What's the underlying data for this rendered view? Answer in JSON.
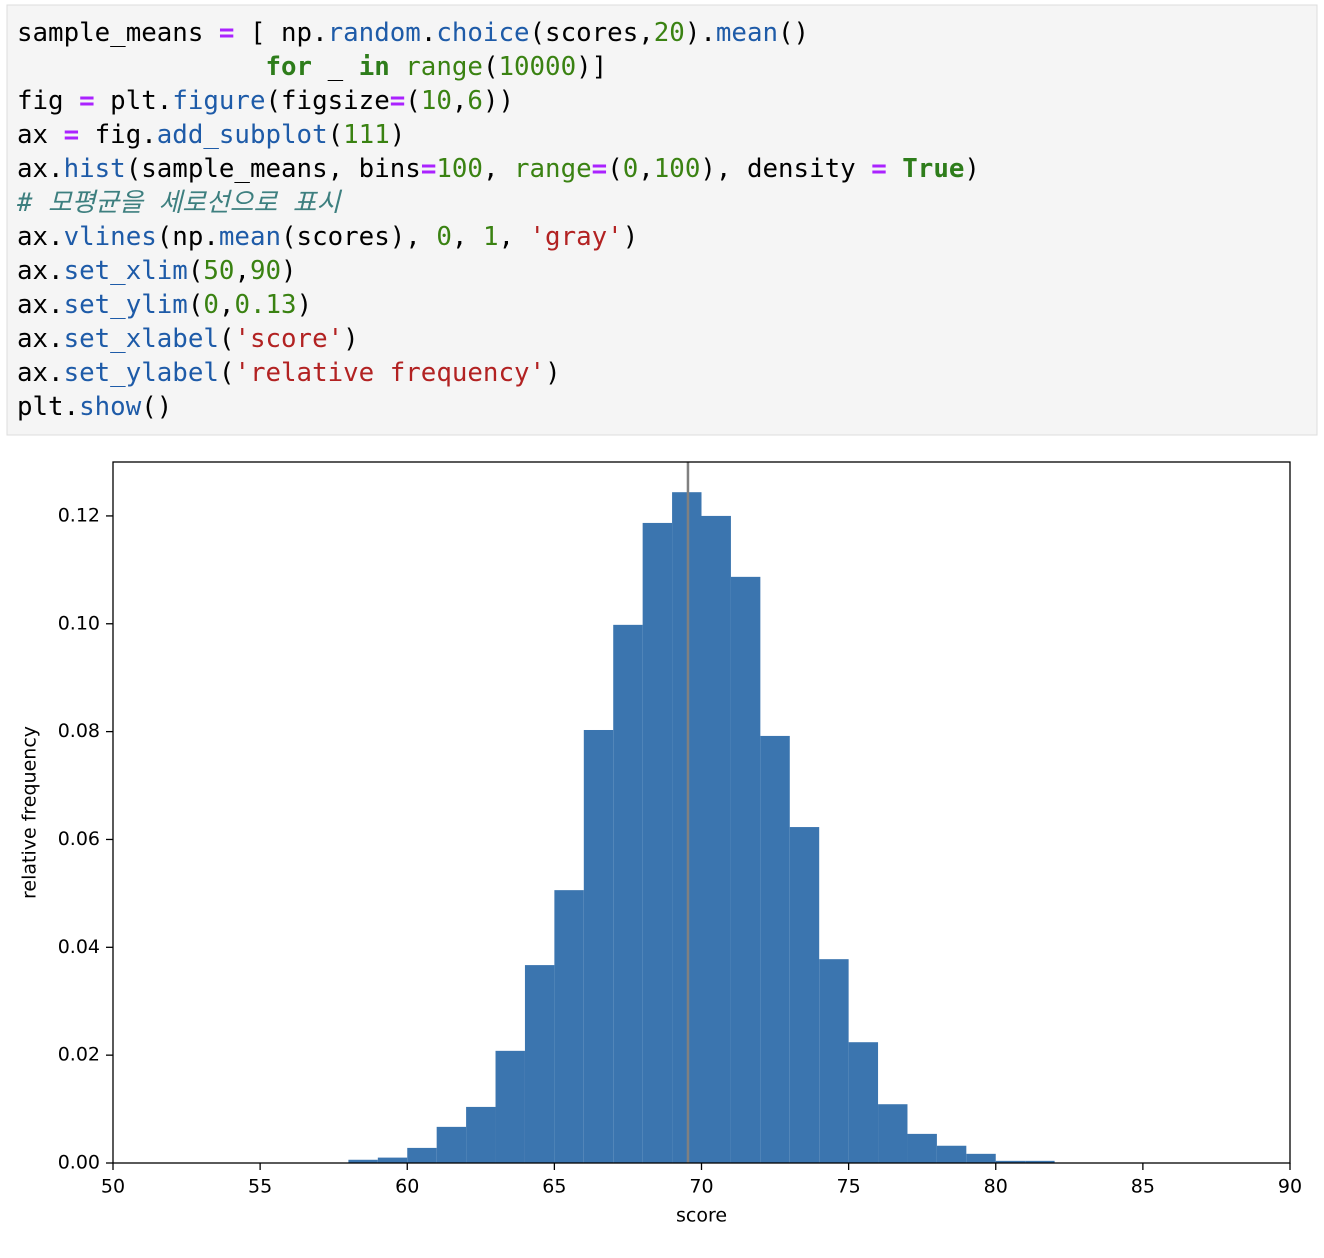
{
  "code": {
    "lines": [
      [
        {
          "t": "sample_means ",
          "c": "#000000"
        },
        {
          "t": "=",
          "c": "#aa22ff",
          "b": true
        },
        {
          "t": " [ np.",
          "c": "#000000"
        },
        {
          "t": "random",
          "c": "#1e5ba8"
        },
        {
          "t": ".",
          "c": "#000000"
        },
        {
          "t": "choice",
          "c": "#1e5ba8"
        },
        {
          "t": "(scores,",
          "c": "#000000"
        },
        {
          "t": "20",
          "c": "#3a8212"
        },
        {
          "t": ").",
          "c": "#000000"
        },
        {
          "t": "mean",
          "c": "#1e5ba8"
        },
        {
          "t": "()",
          "c": "#000000"
        }
      ],
      [
        {
          "t": "                for",
          "c": "#2e7d1b",
          "b": true
        },
        {
          "t": " _ ",
          "c": "#000000"
        },
        {
          "t": "in",
          "c": "#2e7d1b",
          "b": true
        },
        {
          "t": " ",
          "c": "#000000"
        },
        {
          "t": "range",
          "c": "#3a8212"
        },
        {
          "t": "(",
          "c": "#000000"
        },
        {
          "t": "10000",
          "c": "#3a8212"
        },
        {
          "t": ")]",
          "c": "#000000"
        }
      ],
      [
        {
          "t": "fig ",
          "c": "#000000"
        },
        {
          "t": "=",
          "c": "#aa22ff",
          "b": true
        },
        {
          "t": " plt.",
          "c": "#000000"
        },
        {
          "t": "figure",
          "c": "#1e5ba8"
        },
        {
          "t": "(figsize",
          "c": "#000000"
        },
        {
          "t": "=",
          "c": "#aa22ff",
          "b": true
        },
        {
          "t": "(",
          "c": "#000000"
        },
        {
          "t": "10",
          "c": "#3a8212"
        },
        {
          "t": ",",
          "c": "#000000"
        },
        {
          "t": "6",
          "c": "#3a8212"
        },
        {
          "t": "))",
          "c": "#000000"
        }
      ],
      [
        {
          "t": "ax ",
          "c": "#000000"
        },
        {
          "t": "=",
          "c": "#aa22ff",
          "b": true
        },
        {
          "t": " fig.",
          "c": "#000000"
        },
        {
          "t": "add_subplot",
          "c": "#1e5ba8"
        },
        {
          "t": "(",
          "c": "#000000"
        },
        {
          "t": "111",
          "c": "#3a8212"
        },
        {
          "t": ")",
          "c": "#000000"
        }
      ],
      [
        {
          "t": "ax.",
          "c": "#000000"
        },
        {
          "t": "hist",
          "c": "#1e5ba8"
        },
        {
          "t": "(sample_means, bins",
          "c": "#000000"
        },
        {
          "t": "=",
          "c": "#aa22ff",
          "b": true
        },
        {
          "t": "100",
          "c": "#3a8212"
        },
        {
          "t": ", ",
          "c": "#000000"
        },
        {
          "t": "range",
          "c": "#3a8212"
        },
        {
          "t": "=",
          "c": "#aa22ff",
          "b": true
        },
        {
          "t": "(",
          "c": "#000000"
        },
        {
          "t": "0",
          "c": "#3a8212"
        },
        {
          "t": ",",
          "c": "#000000"
        },
        {
          "t": "100",
          "c": "#3a8212"
        },
        {
          "t": "), density ",
          "c": "#000000"
        },
        {
          "t": "=",
          "c": "#aa22ff",
          "b": true
        },
        {
          "t": " ",
          "c": "#000000"
        },
        {
          "t": "True",
          "c": "#2e7d1b",
          "b": true
        },
        {
          "t": ")",
          "c": "#000000"
        }
      ],
      [
        {
          "t": "# 모평균을 세로선으로 표시",
          "c": "#3d7f7f",
          "i": true
        }
      ],
      [
        {
          "t": "ax.",
          "c": "#000000"
        },
        {
          "t": "vlines",
          "c": "#1e5ba8"
        },
        {
          "t": "(np.",
          "c": "#000000"
        },
        {
          "t": "mean",
          "c": "#1e5ba8"
        },
        {
          "t": "(scores), ",
          "c": "#000000"
        },
        {
          "t": "0",
          "c": "#3a8212"
        },
        {
          "t": ", ",
          "c": "#000000"
        },
        {
          "t": "1",
          "c": "#3a8212"
        },
        {
          "t": ", ",
          "c": "#000000"
        },
        {
          "t": "'gray'",
          "c": "#b22222"
        },
        {
          "t": ")",
          "c": "#000000"
        }
      ],
      [
        {
          "t": "ax.",
          "c": "#000000"
        },
        {
          "t": "set_xlim",
          "c": "#1e5ba8"
        },
        {
          "t": "(",
          "c": "#000000"
        },
        {
          "t": "50",
          "c": "#3a8212"
        },
        {
          "t": ",",
          "c": "#000000"
        },
        {
          "t": "90",
          "c": "#3a8212"
        },
        {
          "t": ")",
          "c": "#000000"
        }
      ],
      [
        {
          "t": "ax.",
          "c": "#000000"
        },
        {
          "t": "set_ylim",
          "c": "#1e5ba8"
        },
        {
          "t": "(",
          "c": "#000000"
        },
        {
          "t": "0",
          "c": "#3a8212"
        },
        {
          "t": ",",
          "c": "#000000"
        },
        {
          "t": "0.13",
          "c": "#3a8212"
        },
        {
          "t": ")",
          "c": "#000000"
        }
      ],
      [
        {
          "t": "ax.",
          "c": "#000000"
        },
        {
          "t": "set_xlabel",
          "c": "#1e5ba8"
        },
        {
          "t": "(",
          "c": "#000000"
        },
        {
          "t": "'score'",
          "c": "#b22222"
        },
        {
          "t": ")",
          "c": "#000000"
        }
      ],
      [
        {
          "t": "ax.",
          "c": "#000000"
        },
        {
          "t": "set_ylabel",
          "c": "#1e5ba8"
        },
        {
          "t": "(",
          "c": "#000000"
        },
        {
          "t": "'relative frequency'",
          "c": "#b22222"
        },
        {
          "t": ")",
          "c": "#000000"
        }
      ],
      [
        {
          "t": "plt.",
          "c": "#000000"
        },
        {
          "t": "show",
          "c": "#1e5ba8"
        },
        {
          "t": "()",
          "c": "#000000"
        }
      ]
    ]
  },
  "chart_data": {
    "type": "histogram",
    "x_label": "score",
    "y_label": "relative frequency",
    "color": "#3b75af",
    "bins": [
      58,
      59,
      60,
      61,
      62,
      63,
      64,
      65,
      66,
      67,
      68,
      69,
      70,
      71,
      72,
      73,
      74,
      75,
      76,
      77,
      78,
      79,
      80,
      81,
      82
    ],
    "values": [
      0.0006,
      0.001,
      0.0028,
      0.0067,
      0.0104,
      0.0208,
      0.0367,
      0.0506,
      0.0803,
      0.0998,
      0.1187,
      0.1244,
      0.12,
      0.1087,
      0.0792,
      0.0623,
      0.0378,
      0.0224,
      0.0109,
      0.0054,
      0.0032,
      0.0017,
      0.0004,
      0.0004
    ],
    "vline": {
      "x": 69.54,
      "ymin": 0,
      "ymax": 1,
      "color": "#808080"
    },
    "xlim": [
      50,
      90
    ],
    "xticks": [
      50,
      55,
      60,
      65,
      70,
      75,
      80,
      85,
      90
    ],
    "ylim": [
      0,
      0.13
    ],
    "yticks": [
      {
        "value": 0,
        "label": "0.00"
      },
      {
        "value": 0.02,
        "label": "0.02"
      },
      {
        "value": 0.04,
        "label": "0.04"
      },
      {
        "value": 0.06,
        "label": "0.06"
      },
      {
        "value": 0.08,
        "label": "0.08"
      },
      {
        "value": 0.1,
        "label": "0.10"
      },
      {
        "value": 0.12,
        "label": "0.12"
      }
    ]
  }
}
